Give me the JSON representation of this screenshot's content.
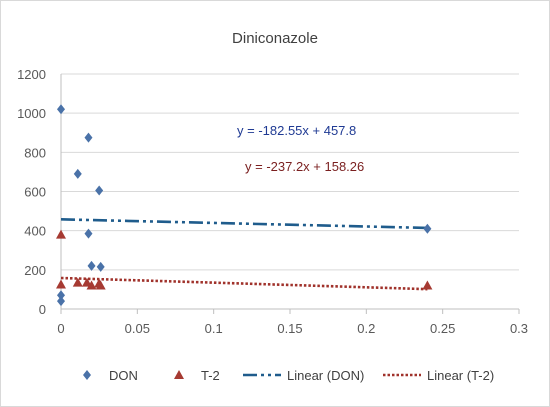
{
  "chart_data": {
    "type": "scatter",
    "title": "Diniconazole",
    "xlabel": "",
    "ylabel": "",
    "xlim": [
      0,
      0.3
    ],
    "ylim": [
      0,
      1200
    ],
    "x_ticks": [
      0,
      0.05,
      0.1,
      0.15,
      0.2,
      0.25,
      0.3
    ],
    "x_tick_labels": [
      "0",
      "0.05",
      "0.1",
      "0.15",
      "0.2",
      "0.25",
      "0.3"
    ],
    "y_ticks": [
      0,
      200,
      400,
      600,
      800,
      1000,
      1200
    ],
    "y_tick_labels": [
      "0",
      "200",
      "400",
      "600",
      "800",
      "1000",
      "1200"
    ],
    "grid": "horizontal",
    "legend_position": "bottom",
    "series": [
      {
        "name": "DON",
        "marker": "diamond",
        "color": "#4a72a8",
        "points": [
          [
            0,
            1020
          ],
          [
            0,
            70
          ],
          [
            0,
            40
          ],
          [
            0.011,
            690
          ],
          [
            0.018,
            875
          ],
          [
            0.018,
            385
          ],
          [
            0.02,
            220
          ],
          [
            0.025,
            605
          ],
          [
            0.026,
            215
          ],
          [
            0.24,
            410
          ]
        ]
      },
      {
        "name": "T-2",
        "marker": "triangle",
        "color": "#a63a32",
        "points": [
          [
            0,
            380
          ],
          [
            0,
            125
          ],
          [
            0.011,
            135
          ],
          [
            0.017,
            135
          ],
          [
            0.02,
            120
          ],
          [
            0.025,
            130
          ],
          [
            0.026,
            120
          ],
          [
            0.24,
            120
          ]
        ]
      }
    ],
    "trendlines": [
      {
        "name": "Linear (DON)",
        "slope": -182.55,
        "intercept": 457.8,
        "color": "#1f5c8c",
        "style": "dash-dot-dot",
        "x_range": [
          0,
          0.24
        ]
      },
      {
        "name": "Linear (T-2)",
        "slope": -237.2,
        "intercept": 158.26,
        "color": "#a0322b",
        "style": "dotted",
        "x_range": [
          0,
          0.24
        ]
      }
    ],
    "annotations": [
      {
        "text": "y = -182.55x + 457.8",
        "color": "#1f3a93"
      },
      {
        "text": "y = -237.2x + 158.26",
        "color": "#7a1f1f"
      }
    ]
  }
}
